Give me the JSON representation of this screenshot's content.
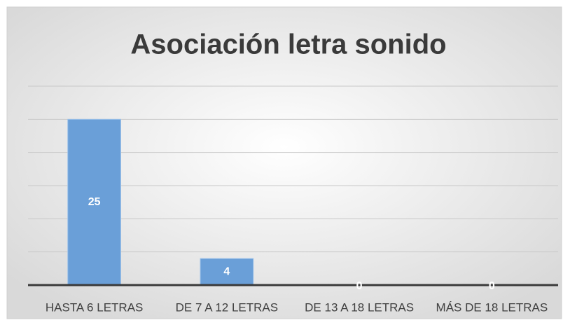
{
  "chart_data": {
    "type": "bar",
    "title": "Asociación letra sonido",
    "categories": [
      "HASTA 6 LETRAS",
      "DE 7 A 12 LETRAS",
      "DE 13 A 18 LETRAS",
      "MÁS DE 18 LETRAS"
    ],
    "values": [
      25,
      4,
      0,
      0
    ],
    "color": "#6a9fd8",
    "ylim": [
      0,
      30
    ],
    "yticks": [
      0,
      5,
      10,
      15,
      20,
      25,
      30
    ],
    "grid": true
  }
}
